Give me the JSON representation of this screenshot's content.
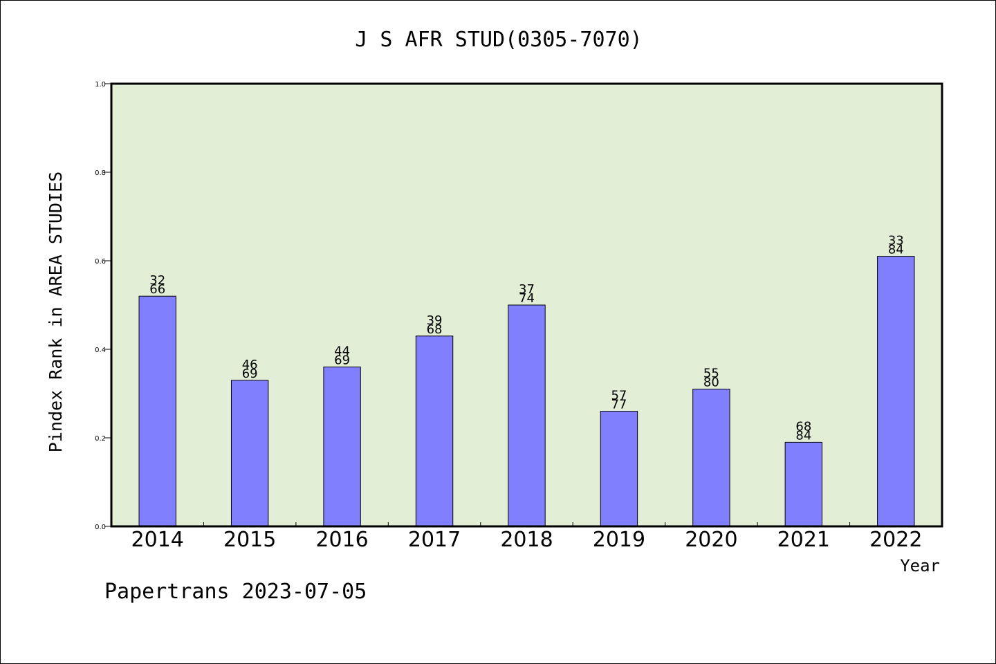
{
  "chart_data": {
    "type": "bar",
    "title": "J S AFR STUD(0305-7070)",
    "xlabel": "Year",
    "ylabel": "Pindex Rank in AREA STUDIES",
    "ylim": [
      0,
      1.0
    ],
    "yticks": [
      "0.0",
      "0.2",
      "0.4",
      "0.6",
      "0.8",
      "1.0"
    ],
    "categories": [
      "2014",
      "2015",
      "2016",
      "2017",
      "2018",
      "2019",
      "2020",
      "2021",
      "2022"
    ],
    "values": [
      0.52,
      0.33,
      0.36,
      0.43,
      0.5,
      0.26,
      0.31,
      0.19,
      0.61
    ],
    "rank": [
      "32",
      "46",
      "44",
      "39",
      "37",
      "57",
      "55",
      "68",
      "33"
    ],
    "total": [
      "66",
      "69",
      "69",
      "68",
      "74",
      "77",
      "80",
      "84",
      "84"
    ],
    "grid": false,
    "colors": {
      "plot_bg": "#e2efd6",
      "bar": "#8080ff",
      "bar_edge": "#000000"
    }
  },
  "footer": "Papertrans 2023-07-05"
}
